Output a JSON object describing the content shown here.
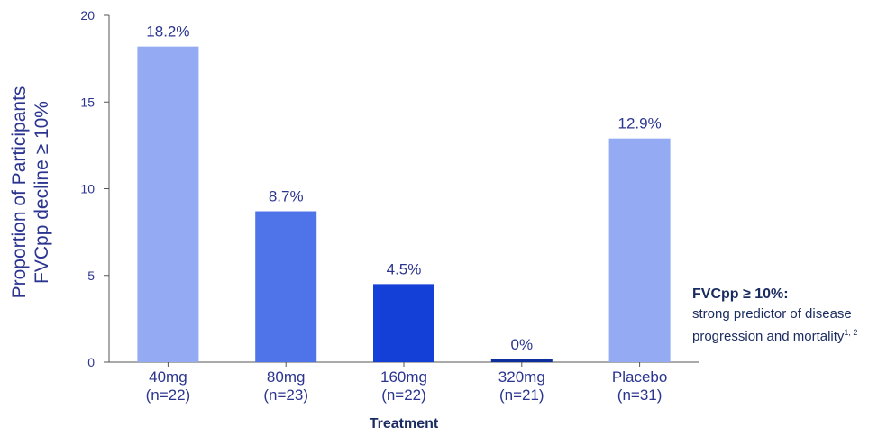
{
  "chart_data": {
    "type": "bar",
    "title": "",
    "xlabel": "Treatment",
    "ylabel": [
      "Proportion of Participants",
      "FVCpp decline ≥ 10%"
    ],
    "ylim": [
      0,
      20
    ],
    "yticks": [
      0,
      5,
      10,
      15,
      20
    ],
    "categories": [
      {
        "name": "40mg",
        "n": "(n=22)"
      },
      {
        "name": "80mg",
        "n": "(n=23)"
      },
      {
        "name": "160mg",
        "n": "(n=22)"
      },
      {
        "name": "320mg",
        "n": "(n=21)"
      },
      {
        "name": "Placebo",
        "n": "(n=31)"
      }
    ],
    "values": [
      18.2,
      8.7,
      4.5,
      0,
      12.9
    ],
    "value_labels": [
      "18.2%",
      "8.7%",
      "4.5%",
      "0%",
      "12.9%"
    ],
    "bar_colors": [
      "#94abf4",
      "#4f74ea",
      "#1540d8",
      "#0f2e9e",
      "#94abf4"
    ],
    "grid": false,
    "text_color": "#2b3590",
    "axis_color": "#555555"
  },
  "note": {
    "title": "FVCpp ≥ 10%:",
    "line1": "strong predictor of disease",
    "line2": "progression and mortality",
    "superscript": "1, 2"
  }
}
